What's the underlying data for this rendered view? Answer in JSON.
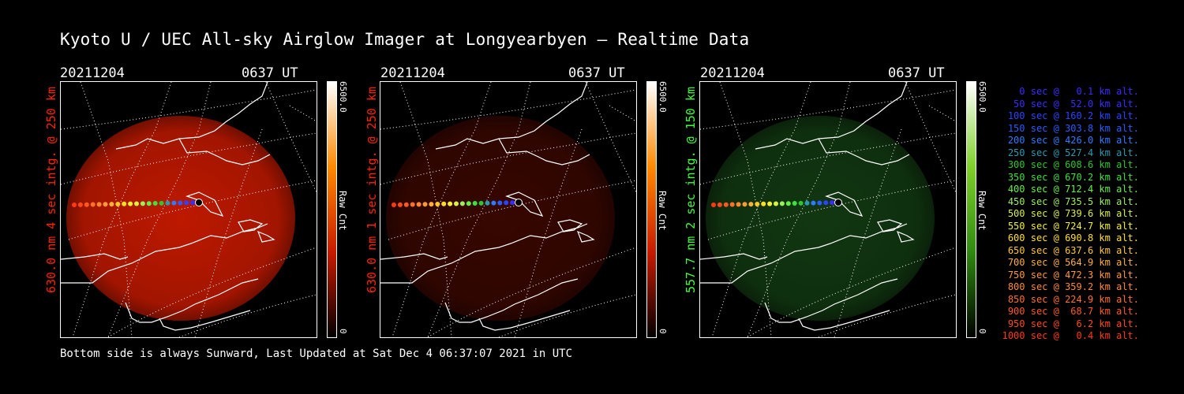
{
  "title": "Kyoto U / UEC All-sky Airglow Imager at Longyearbyen — Realtime Data",
  "panels": [
    {
      "date": "20211204",
      "time": "0637 UT",
      "side_label": "630.0 nm 4 sec intg. @ 250 km",
      "label_color": "#ff2200",
      "glow_color": "#c81a00",
      "glow_opacity": 0.95,
      "cbar_max": "6500.0",
      "cbar_min": "0",
      "cbar_unit": "Raw Cnt",
      "cbar_colors": [
        "#ffffff",
        "#ff8a00",
        "#c81a00",
        "#000000"
      ]
    },
    {
      "date": "20211204",
      "time": "0637 UT",
      "side_label": "630.0 nm 1 sec intg. @ 250 km",
      "label_color": "#ff2200",
      "glow_color": "#3a0700",
      "glow_opacity": 0.95,
      "cbar_max": "6500.0",
      "cbar_min": "0",
      "cbar_unit": "Raw Cnt",
      "cbar_colors": [
        "#ffffff",
        "#ff8a00",
        "#c81a00",
        "#000000"
      ]
    },
    {
      "date": "20211204",
      "time": "0637 UT",
      "side_label": "557.7 nm 2 sec intg. @ 150 km",
      "label_color": "#3dff3d",
      "glow_color": "#123a12",
      "glow_opacity": 0.95,
      "cbar_max": "6500.0",
      "cbar_min": "0",
      "cbar_unit": "Raw Cnt",
      "cbar_colors": [
        "#ffffff",
        "#7fd02a",
        "#2f8a10",
        "#000000"
      ]
    }
  ],
  "legend": [
    {
      "text": "0 sec @   0.1 km alt.",
      "color": "#3b2cff"
    },
    {
      "text": "50 sec @  52.0 km alt.",
      "color": "#3b2cff"
    },
    {
      "text": "100 sec @ 160.2 km alt.",
      "color": "#2a44ff"
    },
    {
      "text": "150 sec @ 303.8 km alt.",
      "color": "#2a5cff"
    },
    {
      "text": "200 sec @ 426.0 km alt.",
      "color": "#2f7bff"
    },
    {
      "text": "250 sec @ 527.4 km alt.",
      "color": "#2a9ab0"
    },
    {
      "text": "300 sec @ 608.6 km alt.",
      "color": "#2ec62e"
    },
    {
      "text": "350 sec @ 670.2 km alt.",
      "color": "#3ee03e"
    },
    {
      "text": "400 sec @ 712.4 km alt.",
      "color": "#66ee44"
    },
    {
      "text": "450 sec @ 735.5 km alt.",
      "color": "#9cf05a"
    },
    {
      "text": "500 sec @ 739.6 km alt.",
      "color": "#d8f040"
    },
    {
      "text": "550 sec @ 724.7 km alt.",
      "color": "#f2f030"
    },
    {
      "text": "600 sec @ 690.8 km alt.",
      "color": "#ffe020"
    },
    {
      "text": "650 sec @ 637.6 km alt.",
      "color": "#ffc828"
    },
    {
      "text": "700 sec @ 564.9 km alt.",
      "color": "#ffb038"
    },
    {
      "text": "750 sec @ 472.3 km alt.",
      "color": "#ff9838"
    },
    {
      "text": "800 sec @ 359.2 km alt.",
      "color": "#ff8830"
    },
    {
      "text": "850 sec @ 224.9 km alt.",
      "color": "#ff7028"
    },
    {
      "text": "900 sec @  68.7 km alt.",
      "color": "#ff5820"
    },
    {
      "text": "950 sec @   6.2 km alt.",
      "color": "#ff4a18"
    },
    {
      "text": "1000 sec @   0.4 km alt.",
      "color": "#ff3a10"
    }
  ],
  "footer": "Bottom side is always Sunward, Last Updated at Sat Dec  4 06:37:07 2021 in UTC"
}
